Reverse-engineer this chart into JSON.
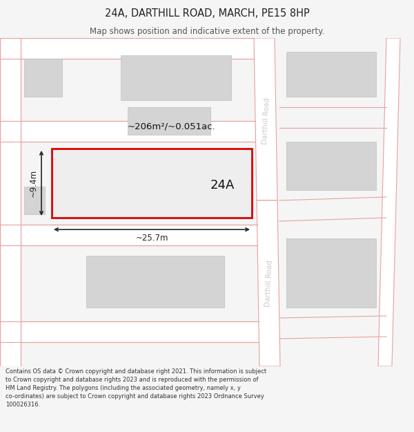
{
  "title_line1": "24A, DARTHILL ROAD, MARCH, PE15 8HP",
  "title_line2": "Map shows position and indicative extent of the property.",
  "footer_text": "Contains OS data © Crown copyright and database right 2021. This information is subject to Crown copyright and database rights 2023 and is reproduced with the permission of HM Land Registry. The polygons (including the associated geometry, namely x, y co-ordinates) are subject to Crown copyright and database rights 2023 Ordnance Survey 100026316.",
  "bg_color": "#f5f5f5",
  "map_bg": "#ffffff",
  "road_stroke": "#e8a0a0",
  "building_fill": "#d4d4d4",
  "building_stroke": "#c0c0c0",
  "highlight_fill": "#eeeeee",
  "highlight_stroke": "#dd0000",
  "road_label_color": "#cccccc",
  "dim_color": "#222222",
  "area_label": "~206m²/~0.051ac.",
  "property_label": "24A",
  "width_label": "~25.7m",
  "height_label": "~9.4m",
  "title_fontsize": 10.5,
  "subtitle_fontsize": 8.5,
  "footer_fontsize": 6.0
}
